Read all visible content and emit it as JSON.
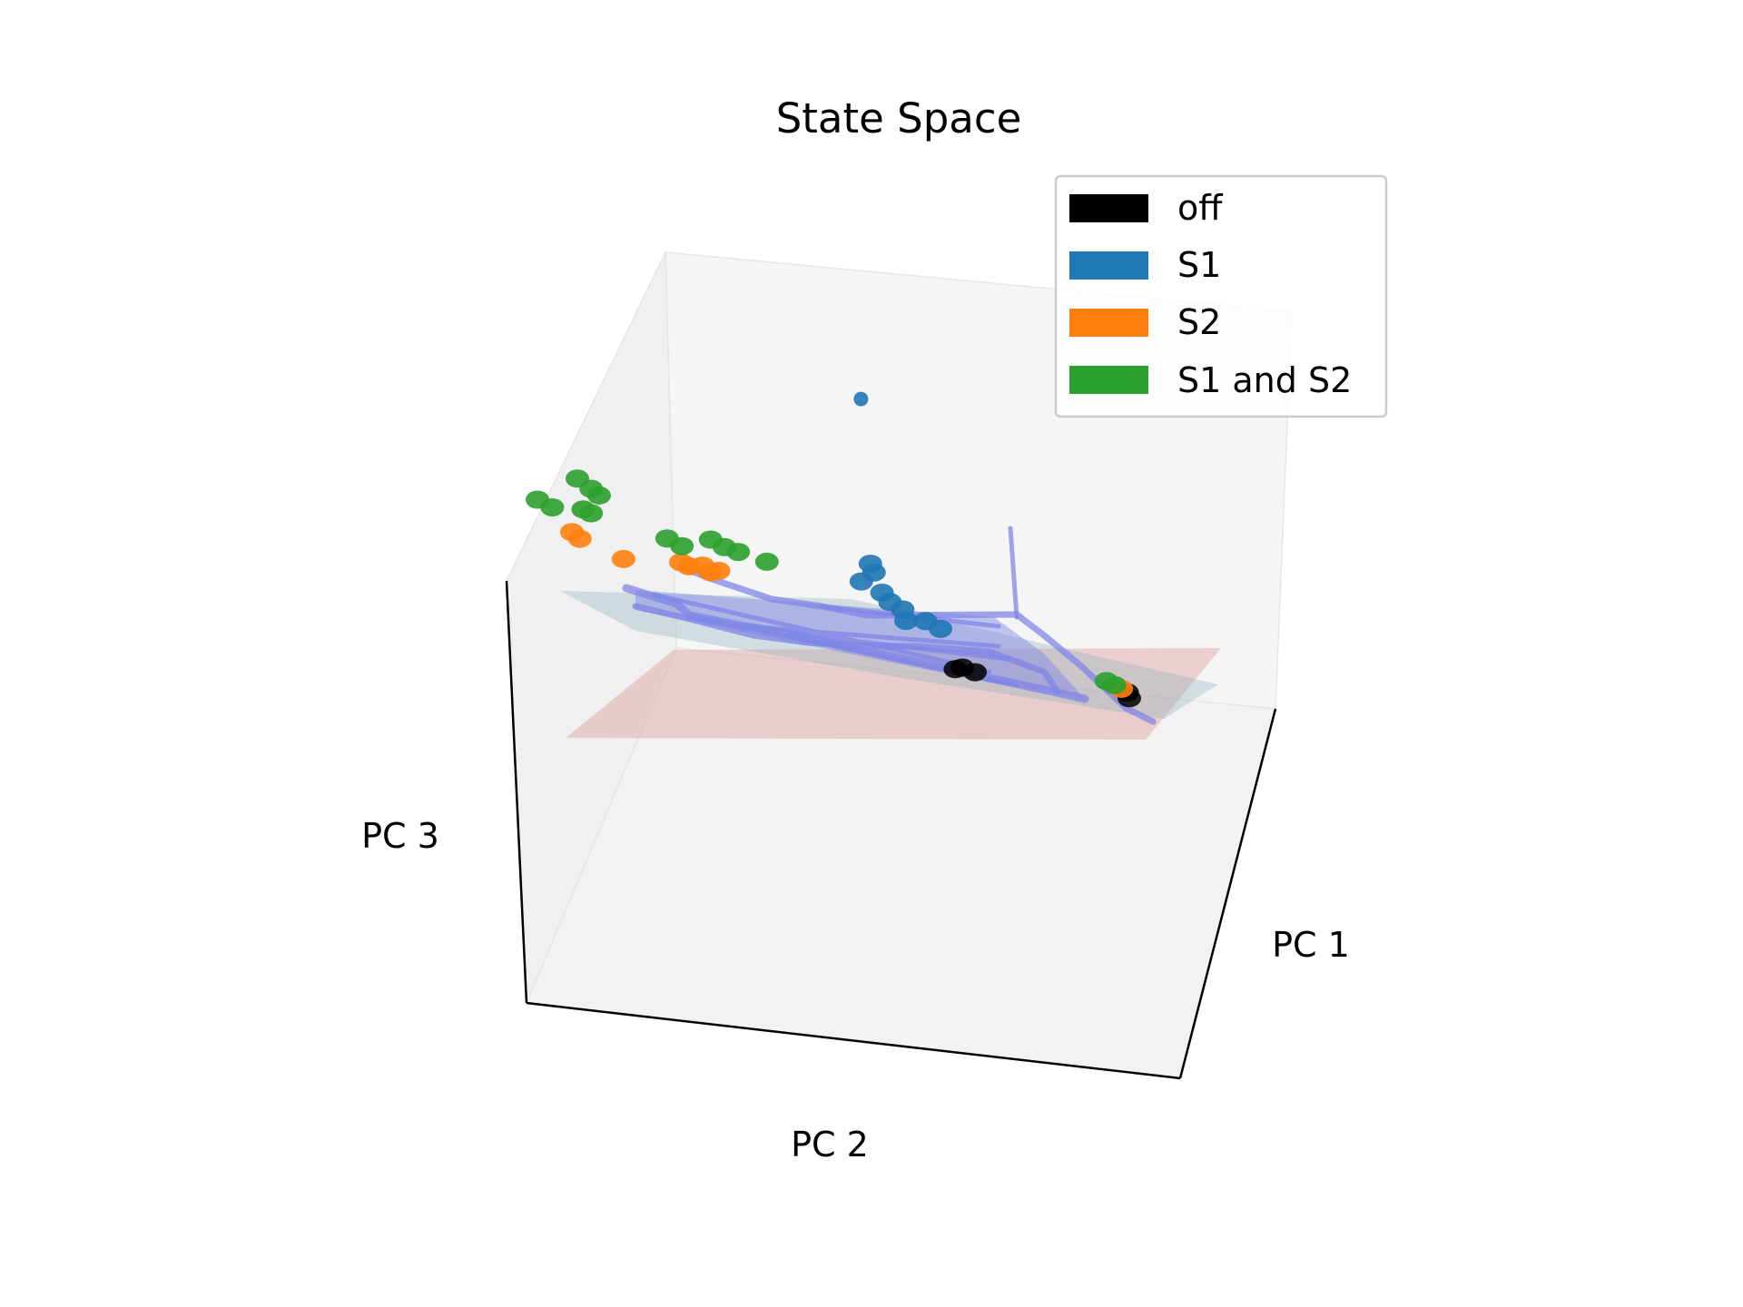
{
  "chart_data": {
    "type": "scatter",
    "projection": "3d",
    "title": "State Space",
    "xlabel": "PC 1",
    "ylabel": "PC 2",
    "zlabel": "PC 3",
    "grid": false,
    "legend_position": "top-right",
    "trajectory_color": "#7f86e6",
    "planes": [
      {
        "color": "#8fb2bd"
      },
      {
        "color": "#d98a8a"
      }
    ],
    "series": [
      {
        "name": "off",
        "color": "#000000",
        "points": [
          [
            0.95,
            0.05,
            0.05
          ],
          [
            0.93,
            0.05,
            0.07
          ],
          [
            0.76,
            0.28,
            0.06
          ],
          [
            0.75,
            0.3,
            0.07
          ],
          [
            0.74,
            0.31,
            0.06
          ]
        ]
      },
      {
        "name": "S1",
        "color": "#1f77b4",
        "points": [
          [
            0.62,
            0.45,
            1.0
          ],
          [
            0.6,
            0.43,
            0.4
          ],
          [
            0.58,
            0.42,
            0.37
          ],
          [
            0.57,
            0.44,
            0.33
          ],
          [
            0.6,
            0.41,
            0.3
          ],
          [
            0.62,
            0.4,
            0.27
          ],
          [
            0.63,
            0.38,
            0.25
          ],
          [
            0.68,
            0.35,
            0.22
          ],
          [
            0.71,
            0.33,
            0.2
          ],
          [
            0.66,
            0.38,
            0.21
          ]
        ]
      },
      {
        "name": "S2",
        "color": "#ff7f0e",
        "points": [
          [
            0.1,
            0.85,
            0.35
          ],
          [
            0.12,
            0.84,
            0.33
          ],
          [
            0.2,
            0.78,
            0.28
          ],
          [
            0.3,
            0.7,
            0.3
          ],
          [
            0.32,
            0.69,
            0.29
          ],
          [
            0.34,
            0.67,
            0.3
          ],
          [
            0.36,
            0.66,
            0.28
          ],
          [
            0.38,
            0.65,
            0.29
          ],
          [
            0.93,
            0.06,
            0.08
          ]
        ]
      },
      {
        "name": "S1 and S2",
        "color": "#2ca02c",
        "points": [
          [
            0.05,
            0.9,
            0.45
          ],
          [
            0.08,
            0.88,
            0.43
          ],
          [
            0.15,
            0.85,
            0.55
          ],
          [
            0.17,
            0.83,
            0.52
          ],
          [
            0.19,
            0.82,
            0.5
          ],
          [
            0.15,
            0.84,
            0.44
          ],
          [
            0.17,
            0.83,
            0.43
          ],
          [
            0.28,
            0.72,
            0.38
          ],
          [
            0.31,
            0.7,
            0.36
          ],
          [
            0.36,
            0.66,
            0.4
          ],
          [
            0.38,
            0.64,
            0.38
          ],
          [
            0.4,
            0.62,
            0.37
          ],
          [
            0.45,
            0.58,
            0.35
          ],
          [
            0.9,
            0.08,
            0.1
          ],
          [
            0.92,
            0.07,
            0.09
          ]
        ]
      }
    ]
  }
}
